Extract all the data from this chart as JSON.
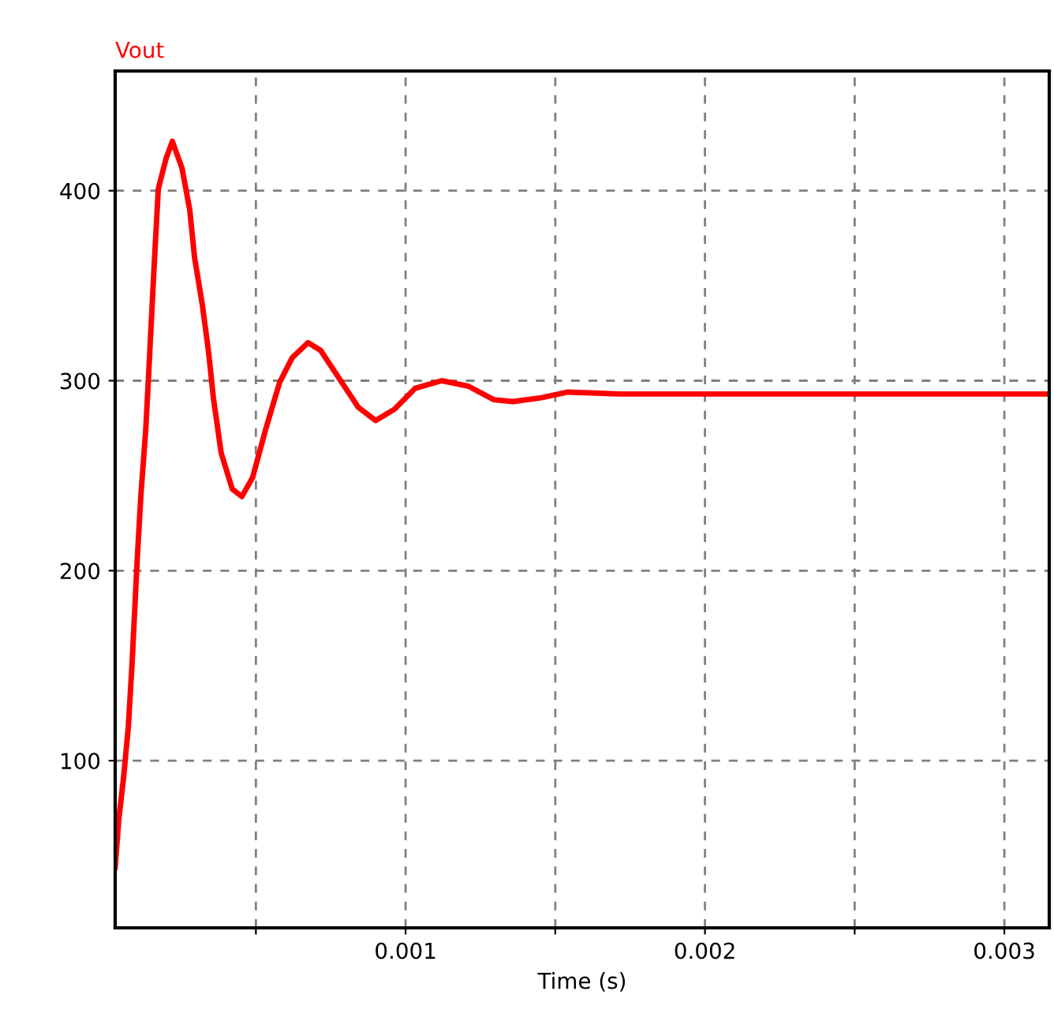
{
  "chart_data": {
    "type": "line",
    "title": "Vout",
    "xlabel": "Time (s)",
    "x": [
      3e-05,
      4.2e-05,
      5.8e-05,
      7.4e-05,
      8.6e-05,
      0.000104,
      0.000116,
      0.000132,
      0.000142,
      0.000158,
      0.000174,
      0.0002,
      0.000221,
      0.000253,
      0.000279,
      0.000295,
      0.000321,
      0.000342,
      0.000358,
      0.000384,
      0.000421,
      0.000453,
      0.000489,
      0.000532,
      0.000579,
      0.000621,
      0.000674,
      0.000716,
      0.000779,
      0.000842,
      0.0009,
      0.000963,
      0.001032,
      0.001121,
      0.001211,
      0.001295,
      0.001358,
      0.001453,
      0.001542,
      0.001716,
      0.00228,
      0.00315
    ],
    "series": [
      {
        "color": "#ff0000",
        "values": [
          44,
          69,
          91,
          118,
          150,
          207,
          240,
          274,
          304,
          354,
          401,
          417,
          426,
          412,
          390,
          365,
          340,
          315,
          291,
          262,
          243,
          239,
          249,
          274,
          299,
          312,
          320,
          316,
          301,
          286,
          279,
          285,
          296,
          300,
          297,
          290,
          289,
          291,
          294,
          293,
          293,
          293
        ]
      }
    ],
    "xlim": [
      3e-05,
      0.00315
    ],
    "ylim": [
      12,
      463
    ],
    "xticks": [
      {
        "value": 0.0005,
        "label": null
      },
      0.001,
      {
        "value": 0.0015,
        "label": null
      },
      0.002,
      {
        "value": 0.0025,
        "label": null
      },
      0.003
    ],
    "yticks": [
      100,
      200,
      300,
      400
    ],
    "grid": true,
    "legend": false,
    "marker": "none",
    "line_style": "solid"
  }
}
